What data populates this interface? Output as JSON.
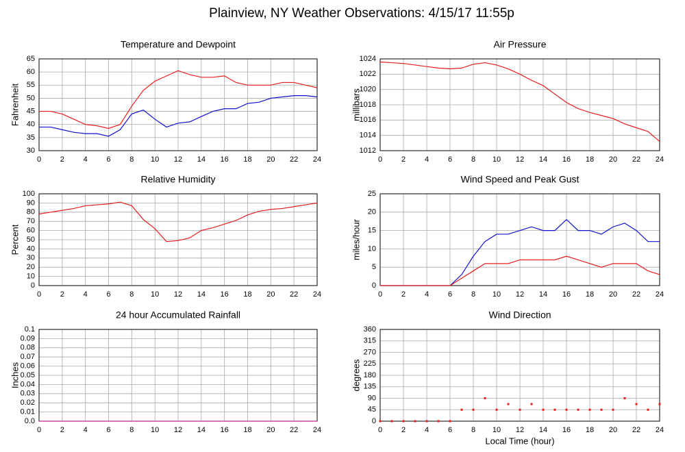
{
  "title": "Plainview, NY Weather Observations: 4/15/17 11:55p",
  "chart_data": [
    {
      "type": "line",
      "title": "Temperature and Dewpoint",
      "ylabel": "Fahrenheit",
      "x": [
        0,
        1,
        2,
        3,
        4,
        5,
        6,
        7,
        8,
        9,
        10,
        11,
        12,
        13,
        14,
        15,
        16,
        17,
        18,
        19,
        20,
        21,
        22,
        23,
        24
      ],
      "xlim": [
        0,
        24
      ],
      "xticks": [
        0,
        2,
        4,
        6,
        8,
        10,
        12,
        14,
        16,
        18,
        20,
        22,
        24
      ],
      "ylim": [
        30,
        65
      ],
      "yticks": [
        30,
        35,
        40,
        45,
        50,
        55,
        60,
        65
      ],
      "grid": true,
      "series": [
        {
          "color": "#e81c1c",
          "values": [
            45,
            45,
            44,
            42,
            40,
            39.5,
            38.5,
            40,
            47,
            53,
            56.5,
            58.5,
            60.5,
            59,
            58,
            58,
            58.5,
            56,
            55,
            55,
            55,
            56,
            56,
            55,
            54
          ]
        },
        {
          "color": "#1010d0",
          "values": [
            39,
            39,
            38,
            37,
            36.5,
            36.5,
            35.5,
            38,
            44,
            45.5,
            42,
            39,
            40.5,
            41,
            43,
            45,
            46,
            46,
            48,
            48.5,
            50,
            50.5,
            51,
            51,
            50.5
          ]
        }
      ]
    },
    {
      "type": "line",
      "title": "Air Pressure",
      "ylabel": "millibars",
      "x": [
        0,
        1,
        2,
        3,
        4,
        5,
        6,
        7,
        8,
        9,
        10,
        11,
        12,
        13,
        14,
        15,
        16,
        17,
        18,
        19,
        20,
        21,
        22,
        23,
        24
      ],
      "xlim": [
        0,
        24
      ],
      "xticks": [
        0,
        2,
        4,
        6,
        8,
        10,
        12,
        14,
        16,
        18,
        20,
        22,
        24
      ],
      "ylim": [
        1012,
        1024
      ],
      "yticks": [
        1012,
        1014,
        1016,
        1018,
        1020,
        1022,
        1024
      ],
      "grid": true,
      "series": [
        {
          "color": "#e81c1c",
          "values": [
            1023.6,
            1023.5,
            1023.4,
            1023.2,
            1023,
            1022.8,
            1022.7,
            1022.8,
            1023.3,
            1023.5,
            1023.2,
            1022.7,
            1022,
            1021.2,
            1020.5,
            1019.4,
            1018.3,
            1017.5,
            1017,
            1016.6,
            1016.2,
            1015.5,
            1015,
            1014.5,
            1013.2
          ]
        }
      ]
    },
    {
      "type": "line",
      "title": "Relative Humidity",
      "ylabel": "Percent",
      "x": [
        0,
        1,
        2,
        3,
        4,
        5,
        6,
        7,
        8,
        9,
        10,
        11,
        12,
        13,
        14,
        15,
        16,
        17,
        18,
        19,
        20,
        21,
        22,
        23,
        24
      ],
      "xlim": [
        0,
        24
      ],
      "xticks": [
        0,
        2,
        4,
        6,
        8,
        10,
        12,
        14,
        16,
        18,
        20,
        22,
        24
      ],
      "ylim": [
        0,
        100
      ],
      "yticks": [
        0,
        10,
        20,
        30,
        40,
        50,
        60,
        70,
        80,
        90,
        100
      ],
      "grid": true,
      "series": [
        {
          "color": "#e81c1c",
          "values": [
            78,
            80,
            82,
            84,
            87,
            88,
            89,
            91,
            87,
            72,
            62,
            48,
            49,
            52,
            60,
            63,
            67,
            71,
            77,
            81,
            83,
            84,
            86,
            88,
            90
          ]
        }
      ]
    },
    {
      "type": "line",
      "title": "Wind Speed and Peak Gust",
      "ylabel": "miles/hour",
      "x": [
        0,
        1,
        2,
        3,
        4,
        5,
        6,
        7,
        8,
        9,
        10,
        11,
        12,
        13,
        14,
        15,
        16,
        17,
        18,
        19,
        20,
        21,
        22,
        23,
        24
      ],
      "xlim": [
        0,
        24
      ],
      "xticks": [
        0,
        2,
        4,
        6,
        8,
        10,
        12,
        14,
        16,
        18,
        20,
        22,
        24
      ],
      "ylim": [
        0,
        25
      ],
      "yticks": [
        0,
        5,
        10,
        15,
        20,
        25
      ],
      "grid": true,
      "series": [
        {
          "color": "#1010d0",
          "values": [
            0,
            0,
            0,
            0,
            0,
            0,
            0,
            3,
            8,
            12,
            14,
            14,
            15,
            16,
            15,
            15,
            18,
            15,
            15,
            14,
            16,
            17,
            15,
            12,
            12
          ]
        },
        {
          "color": "#e81c1c",
          "values": [
            0,
            0,
            0,
            0,
            0,
            0,
            0,
            2,
            4,
            6,
            6,
            6,
            7,
            7,
            7,
            7,
            8,
            7,
            6,
            5,
            6,
            6,
            6,
            4,
            3
          ]
        }
      ]
    },
    {
      "type": "line",
      "title": "24 hour Accumulated Rainfall",
      "ylabel": "Inches",
      "x": [
        0,
        1,
        2,
        3,
        4,
        5,
        6,
        7,
        8,
        9,
        10,
        11,
        12,
        13,
        14,
        15,
        16,
        17,
        18,
        19,
        20,
        21,
        22,
        23,
        24
      ],
      "xlim": [
        0,
        24
      ],
      "xticks": [
        0,
        2,
        4,
        6,
        8,
        10,
        12,
        14,
        16,
        18,
        20,
        22,
        24
      ],
      "ylim": [
        0,
        0.1
      ],
      "yticks": [
        {
          "value": 0,
          "label": "0.0"
        },
        0.01,
        0.02,
        0.03,
        0.04,
        0.05,
        0.06,
        0.07,
        0.08,
        0.09,
        0.1
      ],
      "grid": true,
      "series": [
        {
          "color": "#c0208a",
          "values": [
            0,
            0,
            0,
            0,
            0,
            0,
            0,
            0,
            0,
            0,
            0,
            0,
            0,
            0,
            0,
            0,
            0,
            0,
            0,
            0,
            0,
            0,
            0,
            0,
            0
          ]
        }
      ]
    },
    {
      "type": "scatter",
      "title": "Wind Direction",
      "ylabel": "degrees",
      "xlabel": "Local Time (hour)",
      "x": [
        0,
        1,
        2,
        3,
        4,
        5,
        6,
        7,
        8,
        9,
        10,
        11,
        12,
        13,
        14,
        15,
        16,
        17,
        18,
        19,
        20,
        21,
        22,
        23,
        24
      ],
      "xlim": [
        0,
        24
      ],
      "xticks": [
        0,
        2,
        4,
        6,
        8,
        10,
        12,
        14,
        16,
        18,
        20,
        22,
        24
      ],
      "ylim": [
        0,
        360
      ],
      "yticks": [
        0,
        45,
        90,
        135,
        180,
        225,
        270,
        315,
        360
      ],
      "grid": true,
      "series": [
        {
          "color": "#e81c1c",
          "values": [
            0,
            0,
            0,
            0,
            0,
            0,
            0,
            45,
            45,
            90,
            45,
            67,
            45,
            67,
            45,
            45,
            45,
            45,
            45,
            45,
            45,
            90,
            67,
            45,
            67
          ]
        }
      ]
    }
  ]
}
